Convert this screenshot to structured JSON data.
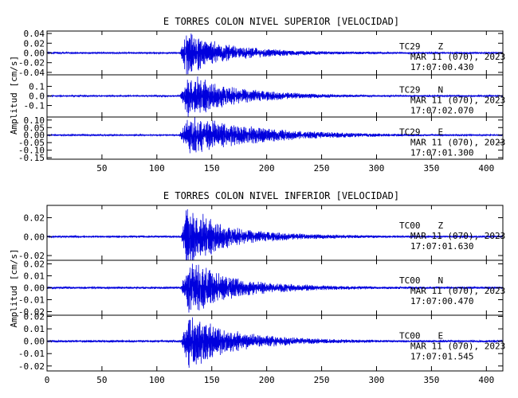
{
  "chart_data": [
    {
      "type": "line",
      "title": "E TORRES COLON NIVEL SUPERIOR [VELOCIDAD]",
      "ylabel": "Amplitud [cm/s]",
      "xlabel": "",
      "xlim": [
        0,
        415
      ],
      "x_ticks": [
        50,
        100,
        150,
        200,
        250,
        300,
        350,
        400
      ],
      "x_tick_labels": [
        "50",
        "100",
        "150",
        "200",
        "250",
        "300",
        "350",
        "400"
      ],
      "grid": false,
      "line_color": "#0000dd",
      "panels": [
        {
          "station": "TC29",
          "component": "Z",
          "date": "MAR 11 (070), 2023",
          "time": "17:07:00.430",
          "ylim": [
            -0.045,
            0.045
          ],
          "y_ticks": [
            0.04,
            0.02,
            0.0,
            -0.02,
            -0.04
          ],
          "y_tick_labels": [
            "0.04",
            "0.02",
            "0.00",
            "-0.02",
            "-0.04"
          ],
          "envelope": {
            "noise": 0.0015,
            "onset": 121,
            "rise": 6,
            "peak_amp": 0.038,
            "decay": 30,
            "coda_amp": 0.004
          }
        },
        {
          "station": "TC29",
          "component": "N",
          "date": "MAR 11 (070), 2023",
          "time": "17:07:02.070",
          "ylim": [
            -0.22,
            0.22
          ],
          "y_ticks": [
            0.1,
            0.0,
            -0.1
          ],
          "y_tick_labels": [
            "0.1",
            "0.0",
            "-0.1"
          ],
          "envelope": {
            "noise": 0.006,
            "onset": 121,
            "rise": 8,
            "peak_amp": 0.2,
            "decay": 40,
            "coda_amp": 0.012
          }
        },
        {
          "station": "TC29",
          "component": "E",
          "date": "MAR 11 (070), 2023",
          "time": "17:07:01.300",
          "ylim": [
            -0.16,
            0.12
          ],
          "y_ticks": [
            0.1,
            0.05,
            0.0,
            -0.05,
            -0.1,
            -0.15
          ],
          "y_tick_labels": [
            "0.10",
            "0.05",
            "0.00",
            "-0.05",
            "-0.10",
            "-0.15"
          ],
          "envelope": {
            "noise": 0.004,
            "onset": 120,
            "rise": 10,
            "peak_amp": 0.11,
            "decay": 55,
            "coda_amp": 0.01
          }
        }
      ]
    },
    {
      "type": "line",
      "title": "E TORRES COLON NIVEL INFERIOR [VELOCIDAD]",
      "ylabel": "Amplitud [cm/s]",
      "xlabel": "",
      "xlim": [
        0,
        415
      ],
      "x_ticks": [
        0,
        50,
        100,
        150,
        200,
        250,
        300,
        350,
        400
      ],
      "x_tick_labels": [
        "0",
        "50",
        "100",
        "150",
        "200",
        "250",
        "300",
        "350",
        "400"
      ],
      "grid": false,
      "line_color": "#0000dd",
      "panels": [
        {
          "station": "TC00",
          "component": "Z",
          "date": "MAR 11 (070), 2023",
          "time": "17:07:01.630",
          "ylim": [
            -0.025,
            0.033
          ],
          "y_ticks": [
            0.02,
            0.0,
            -0.02
          ],
          "y_tick_labels": [
            "0.02",
            "0.00",
            "-0.02"
          ],
          "envelope": {
            "noise": 0.0009,
            "onset": 122,
            "rise": 6,
            "peak_amp": 0.03,
            "decay": 28,
            "coda_amp": 0.0025
          }
        },
        {
          "station": "TC00",
          "component": "N",
          "date": "MAR 11 (070), 2023",
          "time": "17:07:00.470",
          "ylim": [
            -0.023,
            0.023
          ],
          "y_ticks": [
            0.02,
            0.01,
            0.0,
            -0.01,
            -0.02
          ],
          "y_tick_labels": [
            "0.02",
            "0.01",
            "0.00",
            "-0.01",
            "-0.02"
          ],
          "envelope": {
            "noise": 0.0008,
            "onset": 122,
            "rise": 7,
            "peak_amp": 0.02,
            "decay": 32,
            "coda_amp": 0.002
          }
        },
        {
          "station": "TC00",
          "component": "E",
          "date": "MAR 11 (070), 2023",
          "time": "17:07:01.545",
          "ylim": [
            -0.024,
            0.021
          ],
          "y_ticks": [
            0.02,
            0.01,
            0.0,
            -0.01,
            -0.02
          ],
          "y_tick_labels": [
            "0.02",
            "0.01",
            "0.00",
            "-0.01",
            "-0.02"
          ],
          "envelope": {
            "noise": 0.0008,
            "onset": 122,
            "rise": 7,
            "peak_amp": 0.019,
            "decay": 32,
            "coda_amp": 0.002
          }
        }
      ]
    }
  ]
}
